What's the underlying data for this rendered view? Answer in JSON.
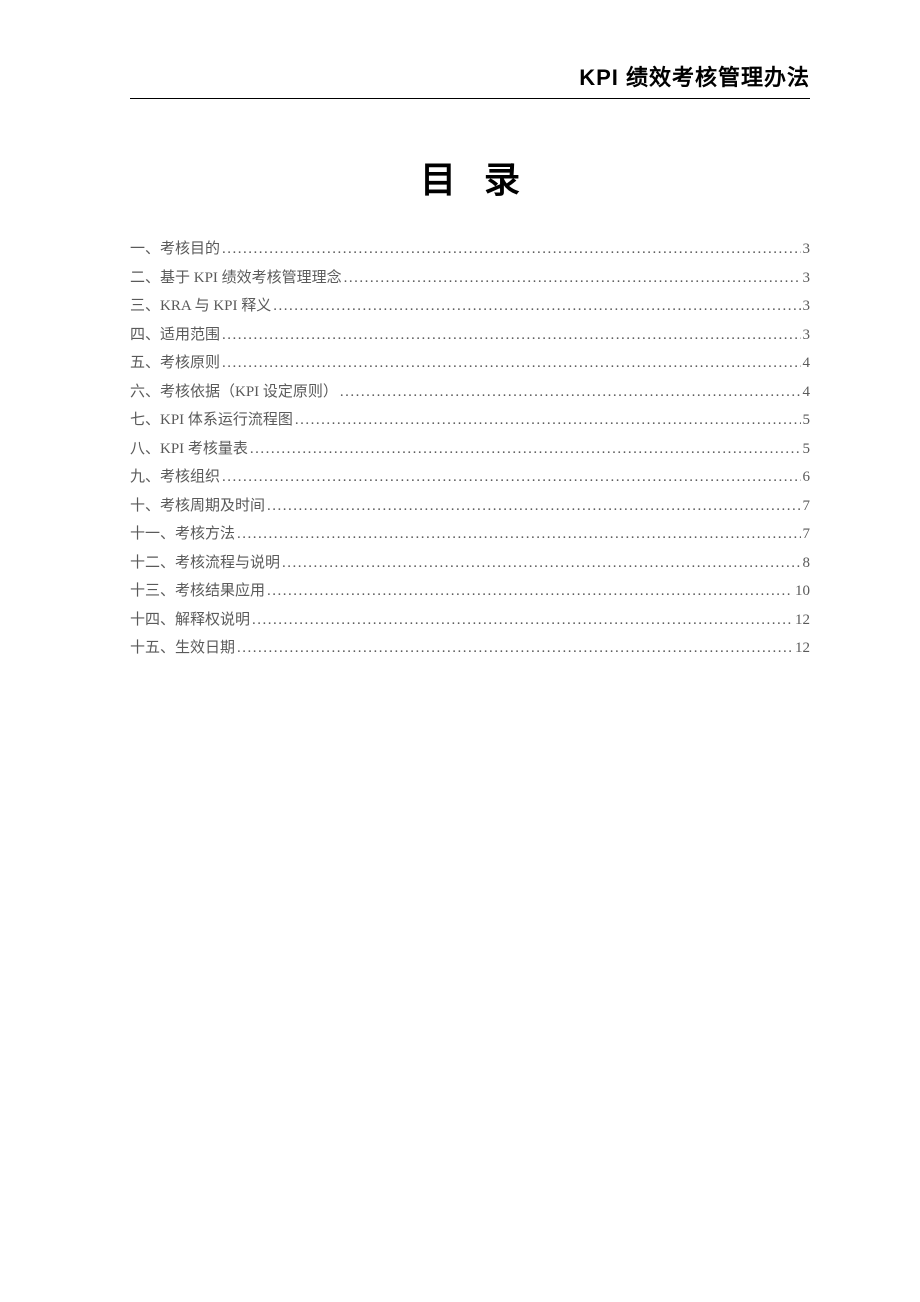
{
  "document": {
    "header_title": "KPI 绩效考核管理办法",
    "toc_title": "目录",
    "colors": {
      "text": "#000000",
      "toc_text": "#5a5a5a",
      "background": "#ffffff",
      "border": "#000000"
    },
    "typography": {
      "header_fontsize": 22,
      "toc_title_fontsize": 36,
      "toc_item_fontsize": 15,
      "header_fontfamily": "SimHei",
      "body_fontfamily": "SimSun"
    },
    "toc_items": [
      {
        "label": "一、考核目的",
        "page": "3"
      },
      {
        "label": "二、基于 KPI 绩效考核管理理念",
        "page": "3"
      },
      {
        "label": "三、KRA 与 KPI 释义",
        "page": "3"
      },
      {
        "label": "四、适用范围",
        "page": "3"
      },
      {
        "label": "五、考核原则",
        "page": "4"
      },
      {
        "label": "六、考核依据（KPI 设定原则）",
        "page": "4"
      },
      {
        "label": "七、KPI 体系运行流程图",
        "page": "5"
      },
      {
        "label": "八、KPI 考核量表",
        "page": "5"
      },
      {
        "label": "九、考核组织",
        "page": "6"
      },
      {
        "label": "十、考核周期及时间",
        "page": "7"
      },
      {
        "label": "十一、考核方法",
        "page": "7"
      },
      {
        "label": "十二、考核流程与说明",
        "page": "8"
      },
      {
        "label": "十三、考核结果应用",
        "page": "10"
      },
      {
        "label": "十四、解释权说明",
        "page": "12"
      },
      {
        "label": "十五、生效日期",
        "page": "12"
      }
    ]
  }
}
